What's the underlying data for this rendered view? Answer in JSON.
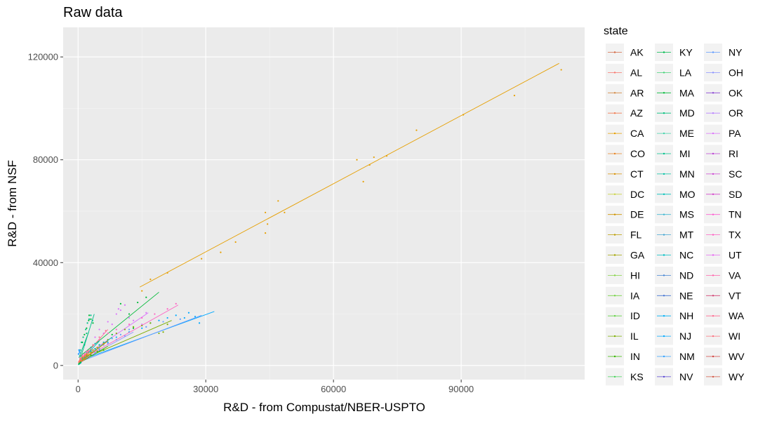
{
  "chart_data": {
    "type": "scatter",
    "title": "Raw data",
    "xlabel": "R&D - from Compustat/NBER-USPTO",
    "ylabel": "R&D - from NSF",
    "xlim": [
      -3500,
      119000
    ],
    "ylim": [
      -5500,
      131500
    ],
    "xticks": [
      0,
      30000,
      60000,
      90000
    ],
    "xtick_labels": [
      "0",
      "30000",
      "60000",
      "90000"
    ],
    "yticks": [
      0,
      40000,
      80000,
      120000
    ],
    "ytick_labels": [
      "0",
      "40000",
      "80000",
      "120000"
    ],
    "grid": true,
    "legend": {
      "title": "state",
      "position": "right",
      "columns": 3,
      "entries": [
        "AK",
        "AL",
        "AR",
        "AZ",
        "CA",
        "CO",
        "CT",
        "DC",
        "DE",
        "FL",
        "GA",
        "HI",
        "IA",
        "ID",
        "IL",
        "IN",
        "KS",
        "KY",
        "LA",
        "MA",
        "MD",
        "ME",
        "MI",
        "MN",
        "MO",
        "MS",
        "MT",
        "NC",
        "ND",
        "NE",
        "NH",
        "NJ",
        "NM",
        "NV",
        "NY",
        "OH",
        "OK",
        "OR",
        "PA",
        "RI",
        "SC",
        "SD",
        "TN",
        "TX",
        "UT",
        "VA",
        "VT",
        "WA",
        "WI",
        "WV",
        "WY"
      ]
    },
    "series": [
      {
        "name": "CA",
        "color": "#E69F00",
        "points": [
          [
            15000,
            29000
          ],
          [
            17000,
            33500
          ],
          [
            21000,
            36000
          ],
          [
            29000,
            41500
          ],
          [
            33500,
            44000
          ],
          [
            37000,
            48000
          ],
          [
            44000,
            51500
          ],
          [
            44500,
            55000
          ],
          [
            44000,
            59500
          ],
          [
            47000,
            64000
          ],
          [
            48500,
            59500
          ],
          [
            65500,
            80000
          ],
          [
            67000,
            71500
          ],
          [
            68500,
            78000
          ],
          [
            69500,
            81000
          ],
          [
            72500,
            81500
          ],
          [
            79500,
            91500
          ],
          [
            90500,
            97500
          ],
          [
            102500,
            105000
          ],
          [
            113500,
            115000
          ]
        ],
        "fit": [
          [
            14500,
            30500
          ],
          [
            113000,
            117500
          ]
        ]
      },
      {
        "name": "MA",
        "color": "#00BA38",
        "points": [
          [
            1000,
            9000
          ],
          [
            1500,
            12000
          ],
          [
            2000,
            14500
          ],
          [
            2500,
            17500
          ],
          [
            2600,
            19500
          ],
          [
            3000,
            18000
          ],
          [
            3500,
            16500
          ],
          [
            8000,
            12000
          ],
          [
            10000,
            24000
          ],
          [
            12000,
            20000
          ],
          [
            14000,
            24500
          ],
          [
            16000,
            26500
          ],
          [
            13000,
            14500
          ]
        ],
        "fit": [
          [
            400,
            3500
          ],
          [
            19000,
            28500
          ]
        ]
      },
      {
        "name": "MI",
        "color": "#00C08B",
        "points": [
          [
            1800,
            14000
          ],
          [
            2200,
            16500
          ],
          [
            2600,
            18000
          ],
          [
            3000,
            19500
          ],
          [
            3400,
            17500
          ]
        ],
        "fit": [
          [
            500,
            2500
          ],
          [
            3800,
            20000
          ]
        ]
      },
      {
        "name": "NJ",
        "color": "#00A9FF",
        "points": [
          [
            5000,
            6000
          ],
          [
            7000,
            9000
          ],
          [
            9000,
            11000
          ],
          [
            12000,
            13000
          ],
          [
            15000,
            14500
          ],
          [
            17000,
            16500
          ],
          [
            19000,
            17500
          ],
          [
            21000,
            18500
          ],
          [
            23000,
            19500
          ],
          [
            25000,
            18500
          ],
          [
            26000,
            20500
          ],
          [
            27500,
            19000
          ],
          [
            28500,
            16500
          ]
        ],
        "fit": [
          [
            500,
            2000
          ],
          [
            32000,
            21000
          ]
        ]
      },
      {
        "name": "NY",
        "color": "#619CFF",
        "points": [
          [
            4000,
            5000
          ],
          [
            6000,
            8000
          ],
          [
            8000,
            10500
          ],
          [
            10000,
            12000
          ],
          [
            12000,
            14000
          ],
          [
            16000,
            15000
          ],
          [
            20000,
            17000
          ],
          [
            24000,
            18000
          ]
        ],
        "fit": [
          [
            500,
            1500
          ],
          [
            29000,
            19500
          ]
        ]
      },
      {
        "name": "PA",
        "color": "#DB72FB",
        "points": [
          [
            4000,
            11000
          ],
          [
            5000,
            14000
          ],
          [
            6000,
            12500
          ],
          [
            7000,
            17000
          ],
          [
            8000,
            16000
          ],
          [
            9000,
            20000
          ],
          [
            9500,
            22000
          ],
          [
            10000,
            21500
          ],
          [
            11000,
            23500
          ],
          [
            12000,
            18500
          ],
          [
            13000,
            17500
          ],
          [
            15000,
            16000
          ],
          [
            16000,
            20500
          ]
        ],
        "fit": [
          [
            400,
            2500
          ],
          [
            16500,
            20500
          ]
        ]
      },
      {
        "name": "TX",
        "color": "#FF61C3",
        "points": [
          [
            3000,
            7000
          ],
          [
            5000,
            10000
          ],
          [
            7000,
            12500
          ],
          [
            9000,
            14000
          ],
          [
            12000,
            16000
          ],
          [
            15000,
            18500
          ],
          [
            18000,
            20000
          ],
          [
            21000,
            22000
          ],
          [
            23000,
            24000
          ]
        ],
        "fit": [
          [
            400,
            2000
          ],
          [
            23500,
            23500
          ]
        ]
      },
      {
        "name": "IL",
        "color": "#7CAE00",
        "points": [
          [
            3000,
            6000
          ],
          [
            5000,
            8000
          ],
          [
            7000,
            10000
          ],
          [
            9000,
            12500
          ],
          [
            11000,
            14000
          ],
          [
            13000,
            15000
          ],
          [
            15000,
            15500
          ],
          [
            17000,
            16500
          ],
          [
            19000,
            12500
          ],
          [
            20000,
            13000
          ],
          [
            21000,
            16000
          ]
        ],
        "fit": [
          [
            400,
            2000
          ],
          [
            22000,
            17500
          ]
        ]
      },
      {
        "name": "MN",
        "color": "#00C1A3",
        "points": [
          [
            2000,
            4000
          ],
          [
            3000,
            5500
          ],
          [
            4000,
            6500
          ],
          [
            5000,
            8000
          ],
          [
            6000,
            9000
          ]
        ],
        "fit": [
          [
            300,
            1200
          ],
          [
            8000,
            11000
          ]
        ]
      },
      {
        "name": "OH",
        "color": "#8B93FF",
        "points": [
          [
            3000,
            4500
          ],
          [
            5000,
            6500
          ],
          [
            7000,
            8500
          ],
          [
            9000,
            10000
          ],
          [
            11000,
            11500
          ]
        ],
        "fit": [
          [
            400,
            1500
          ],
          [
            13000,
            13000
          ]
        ]
      },
      {
        "name": "WA",
        "color": "#FF6C91",
        "points": [
          [
            1500,
            3500
          ],
          [
            2500,
            5500
          ],
          [
            3500,
            8000
          ],
          [
            5000,
            11000
          ],
          [
            6500,
            13500
          ]
        ],
        "fit": [
          [
            300,
            1500
          ],
          [
            7000,
            14000
          ]
        ]
      },
      {
        "name": "CT",
        "color": "#D89000",
        "points": [
          [
            1500,
            3000
          ],
          [
            2500,
            5000
          ],
          [
            3500,
            6000
          ],
          [
            4500,
            7000
          ],
          [
            6000,
            8500
          ]
        ],
        "fit": [
          [
            300,
            1000
          ],
          [
            7000,
            9500
          ]
        ]
      },
      {
        "name": "MD",
        "color": "#00BF7D",
        "points": [
          [
            500,
            6000
          ],
          [
            800,
            9000
          ],
          [
            1200,
            11000
          ],
          [
            1500,
            8000
          ],
          [
            2000,
            12500
          ]
        ],
        "fit": [
          [
            200,
            3000
          ],
          [
            2500,
            13000
          ]
        ]
      },
      {
        "name": "NC",
        "color": "#00BFC4",
        "points": [
          [
            1000,
            3000
          ],
          [
            2000,
            5000
          ],
          [
            3000,
            7000
          ],
          [
            4000,
            8500
          ]
        ],
        "fit": [
          [
            200,
            1000
          ],
          [
            5000,
            9500
          ]
        ]
      },
      {
        "name": "IN",
        "color": "#39B600",
        "points": [
          [
            1500,
            2500
          ],
          [
            3000,
            4000
          ],
          [
            4500,
            5500
          ],
          [
            6000,
            6000
          ]
        ],
        "fit": [
          [
            200,
            800
          ],
          [
            7000,
            7500
          ]
        ]
      },
      {
        "name": "GA",
        "color": "#A3A500",
        "points": [
          [
            500,
            1500
          ],
          [
            1000,
            2500
          ],
          [
            1500,
            3000
          ],
          [
            2000,
            3500
          ]
        ],
        "fit": [
          [
            100,
            500
          ],
          [
            2500,
            4000
          ]
        ]
      },
      {
        "name": "AZ",
        "color": "#F27D52",
        "points": [
          [
            500,
            2500
          ],
          [
            1000,
            3500
          ],
          [
            1500,
            4000
          ],
          [
            2000,
            4500
          ]
        ],
        "fit": [
          [
            100,
            1000
          ],
          [
            2500,
            5000
          ]
        ]
      },
      {
        "name": "CO",
        "color": "#E88526",
        "points": [
          [
            500,
            2000
          ],
          [
            1000,
            3000
          ],
          [
            1500,
            3500
          ],
          [
            2000,
            4000
          ]
        ],
        "fit": [
          [
            100,
            800
          ],
          [
            2500,
            4500
          ]
        ]
      },
      {
        "name": "VA",
        "color": "#FF65AC",
        "points": [
          [
            500,
            3000
          ],
          [
            1000,
            4000
          ],
          [
            1500,
            4500
          ],
          [
            2000,
            5500
          ]
        ],
        "fit": [
          [
            100,
            1500
          ],
          [
            2500,
            6000
          ]
        ]
      },
      {
        "name": "WI",
        "color": "#FC717F",
        "points": [
          [
            500,
            1500
          ],
          [
            1000,
            2000
          ],
          [
            1500,
            2500
          ],
          [
            2000,
            3000
          ]
        ],
        "fit": [
          [
            100,
            500
          ],
          [
            2500,
            3500
          ]
        ]
      },
      {
        "name": "MO",
        "color": "#00C0B8",
        "points": [
          [
            500,
            1500
          ],
          [
            1000,
            2500
          ],
          [
            1500,
            3000
          ],
          [
            2000,
            3500
          ]
        ],
        "fit": [
          [
            100,
            600
          ],
          [
            2500,
            4000
          ]
        ]
      },
      {
        "name": "FL",
        "color": "#BB9D00",
        "points": [
          [
            500,
            2000
          ],
          [
            1000,
            3000
          ],
          [
            2000,
            4000
          ],
          [
            3000,
            5000
          ]
        ],
        "fit": [
          [
            100,
            800
          ],
          [
            3500,
            5500
          ]
        ]
      },
      {
        "name": "OR",
        "color": "#B983FF",
        "points": [
          [
            500,
            1000
          ],
          [
            1000,
            2000
          ],
          [
            1500,
            2500
          ]
        ],
        "fit": [
          [
            100,
            400
          ],
          [
            2000,
            3000
          ]
        ]
      },
      {
        "name": "UT",
        "color": "#E76BF3",
        "points": [
          [
            300,
            800
          ],
          [
            700,
            1500
          ],
          [
            1000,
            2000
          ]
        ],
        "fit": [
          [
            100,
            300
          ],
          [
            1500,
            2500
          ]
        ]
      },
      {
        "name": "NM",
        "color": "#35A2FF",
        "points": [
          [
            100,
            4500
          ],
          [
            200,
            6000
          ],
          [
            300,
            5500
          ],
          [
            400,
            5000
          ]
        ],
        "fit": [
          [
            50,
            4000
          ],
          [
            500,
            6000
          ]
        ]
      },
      {
        "name": "TN",
        "color": "#FD61D1",
        "points": [
          [
            300,
            1000
          ],
          [
            600,
            1500
          ],
          [
            900,
            2000
          ]
        ],
        "fit": [
          [
            100,
            500
          ],
          [
            1200,
            2200
          ]
        ]
      },
      {
        "name": "DE",
        "color": "#CF9400",
        "points": [
          [
            500,
            1500
          ],
          [
            1000,
            2000
          ],
          [
            1500,
            2500
          ]
        ],
        "fit": [
          [
            100,
            800
          ],
          [
            2000,
            3000
          ]
        ]
      },
      {
        "name": "NH",
        "color": "#00B0F6",
        "points": [
          [
            200,
            500
          ],
          [
            400,
            800
          ],
          [
            600,
            1000
          ]
        ],
        "fit": [
          [
            50,
            200
          ],
          [
            800,
            1200
          ]
        ]
      },
      {
        "name": "AL",
        "color": "#F8766D",
        "points": [
          [
            200,
            1500
          ],
          [
            400,
            2000
          ],
          [
            600,
            2500
          ]
        ],
        "fit": [
          [
            50,
            1000
          ],
          [
            800,
            2800
          ]
        ]
      },
      {
        "name": "KY",
        "color": "#00BB4E",
        "points": [
          [
            200,
            600
          ],
          [
            400,
            900
          ],
          [
            600,
            1200
          ]
        ],
        "fit": [
          [
            50,
            300
          ],
          [
            800,
            1400
          ]
        ]
      }
    ]
  }
}
